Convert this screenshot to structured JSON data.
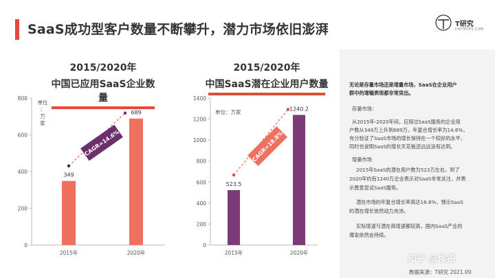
{
  "header": {
    "title": "SaaS成功型客户数量不断攀升，潜力市场依旧澎湃",
    "logo_name": "T研究",
    "logo_site": "CHITEYES.COM"
  },
  "charts": [
    {
      "year": "2015/2020年",
      "title": "中国已应用SaaS企业数量"
    },
    {
      "year": "2015/2020年",
      "title": "中国SaaS潜在企业用户数量"
    }
  ],
  "chart_data": [
    {
      "type": "bar",
      "categories": [
        "2015年",
        "2020年"
      ],
      "values": [
        349,
        689
      ],
      "value_labels": [
        "349",
        "689"
      ],
      "unit_label": [
        "单位",
        "：",
        "万",
        "家"
      ],
      "ylim": [
        0,
        800
      ],
      "yticks": [
        0,
        200,
        400,
        600,
        800
      ],
      "annotation": "CAGR=14.6%",
      "colors": {
        "bar": "#f07060",
        "annotation_bg": "#6b2f6b",
        "trend": "#e34a3b"
      }
    },
    {
      "type": "bar",
      "categories": [
        "2015年",
        "2020年"
      ],
      "values": [
        523.5,
        1240.2
      ],
      "value_labels": [
        "523.5",
        "1240.2"
      ],
      "unit_label": "单位：万家",
      "ylim": [
        0,
        1400
      ],
      "yticks": [
        0,
        200,
        400,
        600,
        800,
        1000,
        1200,
        1400
      ],
      "annotation": "CAGR=18.8%",
      "colors": {
        "bar": "#7b3b78",
        "annotation_bg": "#f07060",
        "trend": "#e34a3b"
      }
    }
  ],
  "panel": {
    "lead": [
      "无论是存量市场还是增量市场，SaaS在企业用户",
      "群中的增幅表现都非常突出。"
    ],
    "section1_title": "存量市场：",
    "section1_body": [
      "从2015年-2020年间，应用过SaaS服务的企业用",
      "户数从349万上升到689万，年复合增长率为14.6%，",
      "充分验证了SaaS市场的增长保持在一个较好的水平，",
      "同时也说明SaaS的增长天花板还远远没有达到。"
    ],
    "section2_title": "增量市场",
    "section2_body": [
      "2015年SaaS的潜在用户数为523万左右，到了",
      "2020年约有1240万企业表示对SaaS非常关注，并表",
      "示愿意尝试SaaS服务。"
    ],
    "section3_body": [
      "潜在市场的年复合增长率高达18.8%，预示SaaS",
      "的潜在增长依然动力充沛。"
    ],
    "section4_body": [
      "实际增速与潜在商增速都较高，国内SaaS产业的",
      "爆发依然会持续。"
    ]
  },
  "watermark": "知乎 @侯锐",
  "source": "数据来源：T研究 2021.09"
}
